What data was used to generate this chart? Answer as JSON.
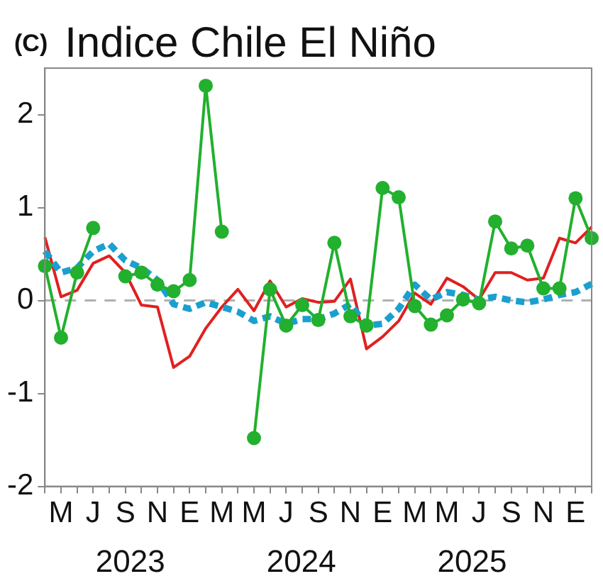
{
  "chart_data": {
    "type": "line",
    "title": "Indice Chile El Niño",
    "annotations": [
      "(C)",
      "2023",
      "2024",
      "2025"
    ],
    "categories": [
      null,
      "M",
      null,
      "J",
      null,
      "S",
      null,
      "N",
      null,
      "E",
      null,
      "M",
      null,
      "M",
      null,
      "J",
      null,
      "S",
      null,
      "N",
      null,
      "E",
      null,
      "M",
      null,
      "M",
      null,
      "J",
      null,
      "S",
      null,
      "N",
      null,
      "E",
      null
    ],
    "series": [
      {
        "color": "#e02020",
        "marker": "none",
        "line_style": "solid",
        "values": [
          0.68,
          0.04,
          0.11,
          0.4,
          0.48,
          0.3,
          -0.05,
          -0.07,
          -0.72,
          -0.6,
          -0.3,
          -0.07,
          0.12,
          -0.11,
          0.21,
          -0.07,
          0.02,
          -0.02,
          -0.01,
          0.23,
          -0.52,
          -0.39,
          -0.22,
          0.08,
          -0.04,
          0.24,
          0.15,
          0.01,
          0.3,
          0.3,
          0.22,
          0.24,
          0.67,
          0.62,
          0.79
        ]
      },
      {
        "color": "#1a9fd0",
        "marker": "none",
        "line_style": "dotted",
        "values": [
          0.53,
          0.3,
          0.35,
          0.53,
          0.61,
          0.43,
          0.35,
          0.22,
          -0.04,
          -0.09,
          -0.02,
          -0.07,
          -0.12,
          -0.22,
          -0.17,
          -0.25,
          -0.2,
          -0.2,
          -0.14,
          -0.04,
          -0.27,
          -0.25,
          -0.09,
          0.17,
          0.01,
          0.09,
          0.06,
          0.01,
          0.04,
          0.0,
          -0.02,
          0.01,
          0.06,
          0.09,
          0.18
        ]
      },
      {
        "color": "#22b02e",
        "marker": "circle",
        "line_style": "solid",
        "values": [
          0.37,
          -0.4,
          0.3,
          0.78,
          null,
          0.26,
          0.3,
          0.17,
          0.1,
          0.22,
          2.31,
          0.74,
          null,
          -1.48,
          0.12,
          -0.27,
          -0.05,
          -0.21,
          0.62,
          -0.17,
          -0.27,
          1.21,
          1.11,
          -0.06,
          -0.26,
          -0.16,
          0.01,
          -0.03,
          0.85,
          0.56,
          0.59,
          0.13,
          0.13,
          1.1,
          0.67
        ]
      }
    ],
    "ylim": [
      -2,
      2.5
    ],
    "yticks": [
      -2,
      -1,
      0,
      1,
      2
    ],
    "ref_lines": [
      {
        "axis": "y",
        "value": 0,
        "color": "#b0b0b0",
        "line_style": "dashed"
      }
    ],
    "grid": false,
    "legend": false
  }
}
